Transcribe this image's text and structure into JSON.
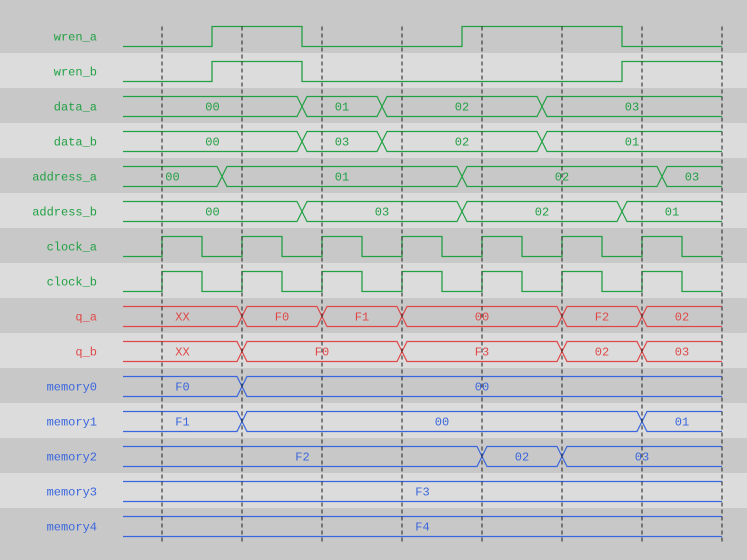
{
  "time_range": [
    -0.4875,
    7
  ],
  "clock_edges": [
    0,
    1,
    2,
    3,
    4,
    5,
    6,
    7
  ],
  "colors": {
    "input": "#22a044",
    "output": "#e04848",
    "memory": "#3a66dd",
    "row_dark": "#c8c8c8",
    "row_light": "#dcdcdc",
    "grid": "#202020"
  },
  "signals": [
    {
      "name": "wren_a",
      "kind": "bit",
      "group": "input",
      "changes": [
        [
          -0.4875,
          0
        ],
        [
          0.625,
          1
        ],
        [
          1.75,
          0
        ],
        [
          3.75,
          1
        ],
        [
          5.75,
          0
        ]
      ]
    },
    {
      "name": "wren_b",
      "kind": "bit",
      "group": "input",
      "changes": [
        [
          -0.4875,
          0
        ],
        [
          0.625,
          1
        ],
        [
          1.75,
          0
        ],
        [
          5.75,
          1
        ]
      ]
    },
    {
      "name": "data_a",
      "kind": "bus",
      "group": "input",
      "changes": [
        [
          -0.4875,
          "00"
        ],
        [
          1.75,
          "01"
        ],
        [
          2.75,
          "02"
        ],
        [
          4.75,
          "03"
        ]
      ]
    },
    {
      "name": "data_b",
      "kind": "bus",
      "group": "input",
      "changes": [
        [
          -0.4875,
          "00"
        ],
        [
          1.75,
          "03"
        ],
        [
          2.75,
          "02"
        ],
        [
          4.75,
          "01"
        ]
      ]
    },
    {
      "name": "address_a",
      "kind": "bus",
      "group": "input",
      "changes": [
        [
          -0.4875,
          "00"
        ],
        [
          0.75,
          "01"
        ],
        [
          3.75,
          "02"
        ],
        [
          6.25,
          "03"
        ]
      ]
    },
    {
      "name": "address_b",
      "kind": "bus",
      "group": "input",
      "changes": [
        [
          -0.4875,
          "00"
        ],
        [
          1.75,
          "03"
        ],
        [
          3.75,
          "02"
        ],
        [
          5.75,
          "01"
        ]
      ]
    },
    {
      "name": "clock_a",
      "kind": "bit",
      "group": "input",
      "changes": [
        [
          -0.4875,
          0
        ],
        [
          0,
          1
        ],
        [
          0.5,
          0
        ],
        [
          1,
          1
        ],
        [
          1.5,
          0
        ],
        [
          2,
          1
        ],
        [
          2.5,
          0
        ],
        [
          3,
          1
        ],
        [
          3.5,
          0
        ],
        [
          4,
          1
        ],
        [
          4.5,
          0
        ],
        [
          5,
          1
        ],
        [
          5.5,
          0
        ],
        [
          6,
          1
        ],
        [
          6.5,
          0
        ]
      ]
    },
    {
      "name": "clock_b",
      "kind": "bit",
      "group": "input",
      "changes": [
        [
          -0.4875,
          0
        ],
        [
          0,
          1
        ],
        [
          0.5,
          0
        ],
        [
          1,
          1
        ],
        [
          1.5,
          0
        ],
        [
          2,
          1
        ],
        [
          2.5,
          0
        ],
        [
          3,
          1
        ],
        [
          3.5,
          0
        ],
        [
          4,
          1
        ],
        [
          4.5,
          0
        ],
        [
          5,
          1
        ],
        [
          5.5,
          0
        ],
        [
          6,
          1
        ],
        [
          6.5,
          0
        ]
      ]
    },
    {
      "name": "q_a",
      "kind": "bus",
      "group": "output",
      "changes": [
        [
          -0.4875,
          "XX"
        ],
        [
          1,
          "F0"
        ],
        [
          2,
          "F1"
        ],
        [
          3,
          "00"
        ],
        [
          5,
          "F2"
        ],
        [
          6,
          "02"
        ]
      ]
    },
    {
      "name": "q_b",
      "kind": "bus",
      "group": "output",
      "changes": [
        [
          -0.4875,
          "XX"
        ],
        [
          1,
          "F0"
        ],
        [
          3,
          "F3"
        ],
        [
          5,
          "02"
        ],
        [
          6,
          "03"
        ]
      ]
    },
    {
      "name": "memory0",
      "kind": "bus",
      "group": "memory",
      "changes": [
        [
          -0.4875,
          "F0"
        ],
        [
          1,
          "00"
        ]
      ]
    },
    {
      "name": "memory1",
      "kind": "bus",
      "group": "memory",
      "changes": [
        [
          -0.4875,
          "F1"
        ],
        [
          1,
          "00"
        ],
        [
          6,
          "01"
        ]
      ]
    },
    {
      "name": "memory2",
      "kind": "bus",
      "group": "memory",
      "changes": [
        [
          -0.4875,
          "F2"
        ],
        [
          4,
          "02"
        ],
        [
          5,
          "03"
        ]
      ]
    },
    {
      "name": "memory3",
      "kind": "bus",
      "group": "memory",
      "changes": [
        [
          -0.4875,
          "F3"
        ]
      ]
    },
    {
      "name": "memory4",
      "kind": "bus",
      "group": "memory",
      "changes": [
        [
          -0.4875,
          "F4"
        ]
      ]
    }
  ]
}
